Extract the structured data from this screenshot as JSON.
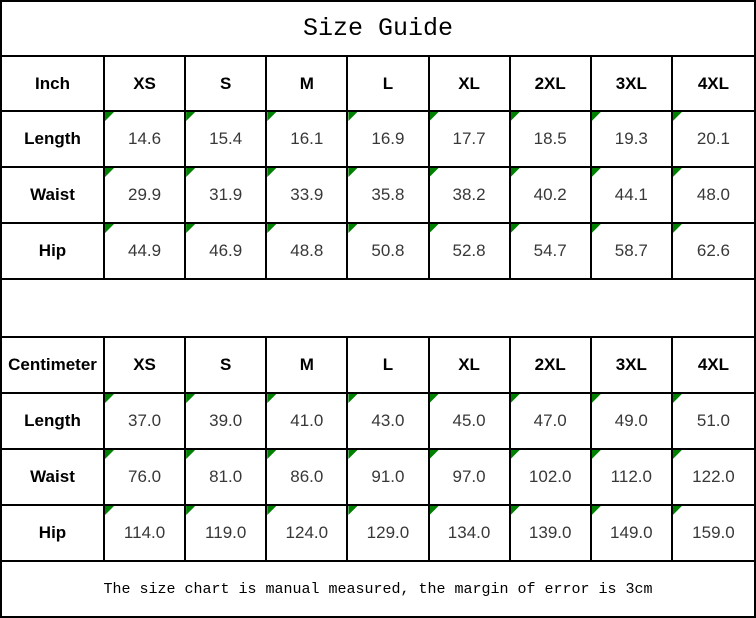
{
  "title": "Size Guide",
  "footer": "The size chart is manual measured, the margin of error is 3cm",
  "colors": {
    "border": "#000000",
    "flag_green": "#008000",
    "header_text": "#000000",
    "value_text": "#383838",
    "background": "#ffffff"
  },
  "icons": {
    "flag_triangle": "green-corner-flag-icon"
  },
  "chart_data": [
    {
      "type": "table",
      "unit_label": "Inch",
      "columns": [
        "XS",
        "S",
        "M",
        "L",
        "XL",
        "2XL",
        "3XL",
        "4XL"
      ],
      "rows": [
        {
          "label": "Length",
          "values": [
            "14.6",
            "15.4",
            "16.1",
            "16.9",
            "17.7",
            "18.5",
            "19.3",
            "20.1"
          ]
        },
        {
          "label": "Waist",
          "values": [
            "29.9",
            "31.9",
            "33.9",
            "35.8",
            "38.2",
            "40.2",
            "44.1",
            "48.0"
          ]
        },
        {
          "label": "Hip",
          "values": [
            "44.9",
            "46.9",
            "48.8",
            "50.8",
            "52.8",
            "54.7",
            "58.7",
            "62.6"
          ]
        }
      ]
    },
    {
      "type": "table",
      "unit_label": "Centimeter",
      "columns": [
        "XS",
        "S",
        "M",
        "L",
        "XL",
        "2XL",
        "3XL",
        "4XL"
      ],
      "rows": [
        {
          "label": "Length",
          "values": [
            "37.0",
            "39.0",
            "41.0",
            "43.0",
            "45.0",
            "47.0",
            "49.0",
            "51.0"
          ]
        },
        {
          "label": "Waist",
          "values": [
            "76.0",
            "81.0",
            "86.0",
            "91.0",
            "97.0",
            "102.0",
            "112.0",
            "122.0"
          ]
        },
        {
          "label": "Hip",
          "values": [
            "114.0",
            "119.0",
            "124.0",
            "129.0",
            "134.0",
            "139.0",
            "149.0",
            "159.0"
          ]
        }
      ]
    }
  ]
}
